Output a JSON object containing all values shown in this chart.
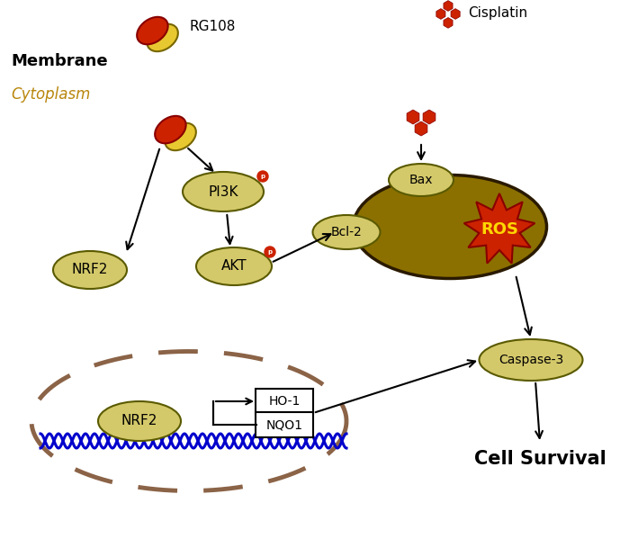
{
  "background_color": "#ffffff",
  "membrane_color": "#1a1a1a",
  "cytoplasm_label_color": "#b8860b",
  "membrane_label_color": "#000000",
  "node_fill": "#d4c96a",
  "node_edge": "#5a5a00",
  "mito_fill": "#8B7000",
  "mito_edge": "#2a1a00",
  "dna_color": "#0000cc",
  "arrow_color": "#000000",
  "red_dot_color": "#cc2200",
  "ros_color": "#cc2200",
  "ros_text": "#FFD700",
  "capsule_red": "#cc2200",
  "capsule_yellow": "#e8c830",
  "cisplatin_color": "#cc2200",
  "nucleus_dash_color": "#8B6347",
  "labels": {
    "membrane": "Membrane",
    "cytoplasm": "Cytoplasm",
    "rg108": "RG108",
    "cisplatin": "Cisplatin",
    "pi3k": "PI3K",
    "akt": "AKT",
    "nrf2_cyto": "NRF2",
    "nrf2_nuc": "NRF2",
    "bcl2": "Bcl-2",
    "bax": "Bax",
    "ros": "ROS",
    "ho1": "HO-1",
    "nqo1": "NQO1",
    "caspase3": "Caspase-3",
    "cell_survival": "Cell Survival"
  }
}
